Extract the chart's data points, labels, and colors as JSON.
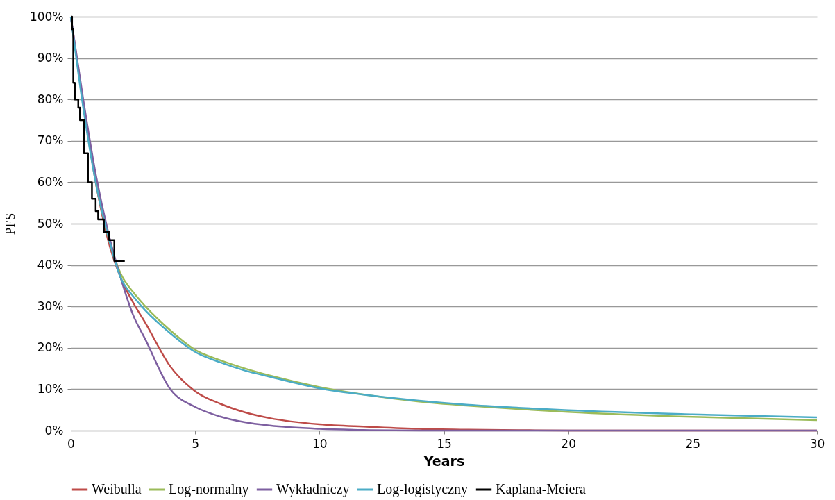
{
  "chart_data": {
    "type": "line",
    "xlabel": "Years",
    "ylabel": "PFS",
    "x": [
      0,
      0.5,
      1,
      1.5,
      2,
      2.5,
      3,
      4,
      5,
      6,
      7,
      8,
      10,
      12,
      14,
      16,
      18,
      20,
      25,
      30
    ],
    "series": [
      {
        "name": "Weibulla",
        "color": "#be4b48",
        "values": [
          100,
          79,
          60,
          46,
          37,
          31,
          26,
          15.5,
          9.5,
          6.5,
          4.4,
          3,
          1.5,
          0.9,
          0.4,
          0.2,
          0.1,
          0,
          0,
          0
        ]
      },
      {
        "name": "Log-normalny",
        "color": "#9bbb59",
        "values": [
          null,
          null,
          60,
          47,
          38,
          33.5,
          30,
          24.2,
          19.5,
          17,
          15,
          13.3,
          10.5,
          8.5,
          7,
          6,
          5.2,
          4.5,
          3.3,
          2.5
        ]
      },
      {
        "name": "Wykładniczy",
        "color": "#7d5fa0",
        "values": [
          100,
          80,
          62,
          48,
          37,
          28,
          22,
          10,
          5.7,
          3.4,
          2,
          1.2,
          0.4,
          0.1,
          0,
          0,
          0,
          0,
          0,
          0
        ]
      },
      {
        "name": "Log-logistyczny",
        "color": "#4bacc6",
        "values": [
          100,
          78,
          60,
          47,
          37,
          32.5,
          29,
          23.5,
          19,
          16.5,
          14.5,
          13,
          10.2,
          8.5,
          7.2,
          6.2,
          5.5,
          4.9,
          3.9,
          3.2
        ]
      },
      {
        "name": "Kaplana-Meiera",
        "color": "#000000",
        "type": "step",
        "x": [
          0,
          0.05,
          0.1,
          0.16,
          0.3,
          0.37,
          0.53,
          0.69,
          0.85,
          1.0,
          1.1,
          1.33,
          1.54,
          1.75,
          2.17
        ],
        "values": [
          100,
          97,
          84,
          80,
          78,
          75,
          67,
          60,
          56,
          53,
          51,
          48,
          46,
          41,
          41
        ]
      }
    ],
    "xlim": [
      0,
      30
    ],
    "xticks": [
      0,
      5,
      10,
      15,
      20,
      25,
      30
    ],
    "ylim": [
      0,
      100
    ],
    "yticks": [
      {
        "value": 0,
        "label": "0%"
      },
      {
        "value": 10,
        "label": "10%"
      },
      {
        "value": 20,
        "label": "20%"
      },
      {
        "value": 30,
        "label": "30%"
      },
      {
        "value": 40,
        "label": "40%"
      },
      {
        "value": 50,
        "label": "50%"
      },
      {
        "value": 60,
        "label": "60%"
      },
      {
        "value": 70,
        "label": "70%"
      },
      {
        "value": 80,
        "label": "80%"
      },
      {
        "value": 90,
        "label": "90%"
      },
      {
        "value": 100,
        "label": "100%"
      }
    ],
    "grid": "y",
    "legend": "bottom",
    "marker": "none",
    "line_style": "solid"
  }
}
